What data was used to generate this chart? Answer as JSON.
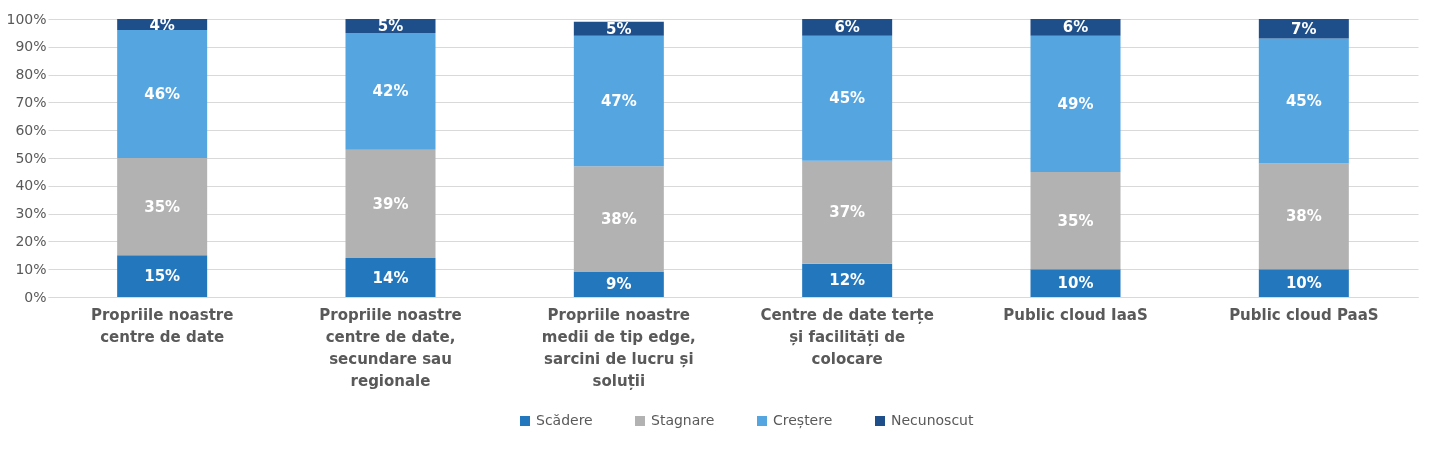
{
  "chart_data": {
    "type": "bar",
    "stacked": true,
    "grid": "y",
    "legend": "bottom",
    "categories": [
      "Propriile noastre centre de date",
      "Propriile noastre centre de date, secundare sau regionale",
      "Propriile noastre medii de tip edge, sarcini de lucru și soluții",
      "Centre de date terțe și facilități de colocare",
      "Public cloud IaaS",
      "Public cloud PaaS"
    ],
    "ylim": [
      0,
      100
    ],
    "yticks": [
      {
        "value": 0,
        "label": "0%"
      },
      {
        "value": 10,
        "label": "10%"
      },
      {
        "value": 20,
        "label": "20%"
      },
      {
        "value": 30,
        "label": "30%"
      },
      {
        "value": 40,
        "label": "40%"
      },
      {
        "value": 50,
        "label": "50%"
      },
      {
        "value": 60,
        "label": "60%"
      },
      {
        "value": 70,
        "label": "70%"
      },
      {
        "value": 80,
        "label": "80%"
      },
      {
        "value": 90,
        "label": "90%"
      },
      {
        "value": 100,
        "label": "100%"
      }
    ],
    "series": [
      {
        "name": "Scădere",
        "color": "#2277bd",
        "values": [
          15,
          14,
          9,
          12,
          10,
          10
        ],
        "value_labels": [
          "15%",
          "14%",
          "9%",
          "12%",
          "10%",
          "10%"
        ]
      },
      {
        "name": "Stagnare",
        "color": "#b2b2b2",
        "values": [
          35,
          39,
          38,
          37,
          35,
          38
        ],
        "value_labels": [
          "35%",
          "39%",
          "38%",
          "37%",
          "35%",
          "38%"
        ]
      },
      {
        "name": "Creștere",
        "color": "#55a5e1",
        "values": [
          46,
          42,
          47,
          45,
          49,
          45
        ],
        "value_labels": [
          "46%",
          "42%",
          "47%",
          "45%",
          "49%",
          "45%"
        ]
      },
      {
        "name": "Necunoscut",
        "color": "#1f4f8a",
        "values": [
          4,
          5,
          5,
          6,
          6,
          7
        ],
        "value_labels": [
          "4%",
          "5%",
          "5%",
          "6%",
          "6%",
          "7%"
        ]
      }
    ]
  }
}
